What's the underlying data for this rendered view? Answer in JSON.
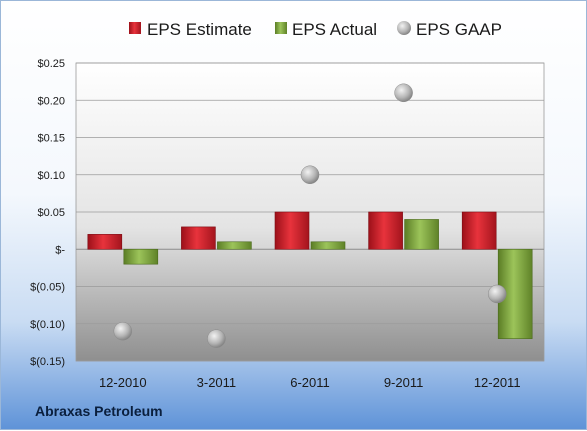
{
  "company": "Abraxas Petroleum",
  "colors": {
    "estimate": "#c8202a",
    "actual": "#7ea63a",
    "gaap": "#b8b8b8"
  },
  "chart_data": {
    "type": "bar",
    "categories": [
      "12-2010",
      "3-2011",
      "6-2011",
      "9-2011",
      "12-2011"
    ],
    "series": [
      {
        "name": "EPS Estimate",
        "kind": "bar",
        "values": [
          0.02,
          0.03,
          0.05,
          0.05,
          0.05
        ]
      },
      {
        "name": "EPS Actual",
        "kind": "bar",
        "values": [
          -0.02,
          0.01,
          0.01,
          0.04,
          -0.12
        ]
      },
      {
        "name": "EPS GAAP",
        "kind": "marker",
        "values": [
          -0.11,
          -0.12,
          0.1,
          0.21,
          -0.06
        ]
      }
    ],
    "ylim": [
      -0.15,
      0.25
    ],
    "yticks": [
      {
        "value": 0.25,
        "label": "$0.25"
      },
      {
        "value": 0.2,
        "label": "$0.20"
      },
      {
        "value": 0.15,
        "label": "$0.15"
      },
      {
        "value": 0.1,
        "label": "$0.10"
      },
      {
        "value": 0.05,
        "label": "$0.05"
      },
      {
        "value": 0.0,
        "label": "$-"
      },
      {
        "value": -0.05,
        "label": "$(0.05)"
      },
      {
        "value": -0.1,
        "label": "$(0.10)"
      },
      {
        "value": -0.15,
        "label": "$(0.15)"
      }
    ],
    "grid": true,
    "legend_position": "top"
  }
}
